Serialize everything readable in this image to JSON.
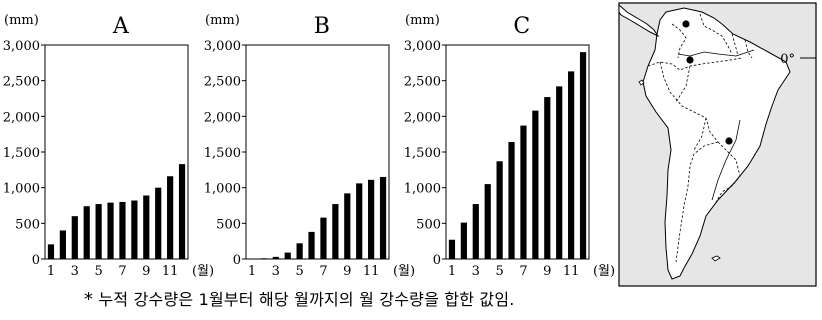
{
  "chart_data": [
    {
      "type": "bar",
      "title": "A",
      "unit": "(mm)",
      "x_unit": "(월)",
      "categories": [
        1,
        2,
        3,
        4,
        5,
        6,
        7,
        8,
        9,
        10,
        11,
        12
      ],
      "x_tick_labels": [
        "1",
        "3",
        "5",
        "7",
        "9",
        "11"
      ],
      "y_tick_labels": [
        "0",
        "500",
        "1,000",
        "1,500",
        "2,000",
        "2,500",
        "3,000"
      ],
      "ylim": [
        0,
        3000
      ],
      "values": [
        205,
        400,
        600,
        740,
        770,
        790,
        800,
        820,
        890,
        1000,
        1160,
        1330
      ]
    },
    {
      "type": "bar",
      "title": "B",
      "unit": "(mm)",
      "x_unit": "(월)",
      "categories": [
        1,
        2,
        3,
        4,
        5,
        6,
        7,
        8,
        9,
        10,
        11,
        12
      ],
      "x_tick_labels": [
        "1",
        "3",
        "5",
        "7",
        "9",
        "11"
      ],
      "y_tick_labels": [
        "0",
        "500",
        "1,000",
        "1,500",
        "2,000",
        "2,500",
        "3,000"
      ],
      "ylim": [
        0,
        3000
      ],
      "values": [
        5,
        10,
        30,
        90,
        220,
        380,
        580,
        770,
        920,
        1060,
        1110,
        1150
      ]
    },
    {
      "type": "bar",
      "title": "C",
      "unit": "(mm)",
      "x_unit": "(월)",
      "categories": [
        1,
        2,
        3,
        4,
        5,
        6,
        7,
        8,
        9,
        10,
        11,
        12
      ],
      "x_tick_labels": [
        "1",
        "3",
        "5",
        "7",
        "9",
        "11"
      ],
      "y_tick_labels": [
        "0",
        "500",
        "1,000",
        "1,500",
        "2,000",
        "2,500",
        "3,000"
      ],
      "ylim": [
        0,
        3000
      ],
      "values": [
        270,
        510,
        770,
        1050,
        1370,
        1640,
        1870,
        2080,
        2270,
        2420,
        2630,
        2900
      ]
    }
  ],
  "map": {
    "equator_label": "0°",
    "colors": {
      "land": "#ffffff",
      "sea": "#e6e6e6",
      "border": "#000000"
    }
  },
  "caption": {
    "star": "*",
    "text": "누적 강수량은 1월부터 해당 월까지의 월 강수량을 합한 값임."
  }
}
